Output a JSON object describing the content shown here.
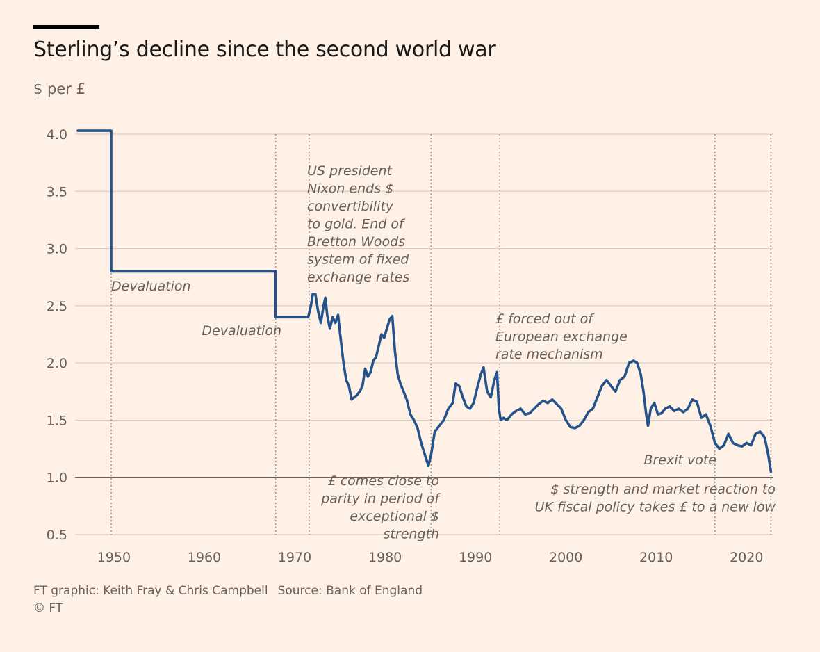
{
  "header": {
    "title": "Sterling’s decline since the second world war",
    "unit_label": "$ per £"
  },
  "footer": {
    "credit": "FT graphic: Keith Fray & Chris Campbell",
    "source": "Source: Bank of England",
    "copyright": "© FT"
  },
  "colors": {
    "line": "#24528a",
    "grid": "#d9cfc6",
    "baseline": "#66605c",
    "marker": "#9b9592",
    "background": "#fff1e5"
  },
  "chart_data": {
    "type": "line",
    "title": "Sterling’s decline since the second world war",
    "ylabel": "$ per £",
    "xlabel": "",
    "xlim": [
      1945.7,
      2022.9
    ],
    "ylim": [
      0.5,
      4.0
    ],
    "x_ticks": [
      1950,
      1960,
      1970,
      1980,
      1990,
      2000,
      2010,
      2020
    ],
    "y_ticks": [
      0.5,
      1.0,
      1.5,
      2.0,
      2.5,
      3.0,
      3.5,
      4.0
    ],
    "y_tick_labels": [
      "0.5",
      "1.0",
      "1.5",
      "2.0",
      "2.5",
      "3.0",
      "3.5",
      "4.0"
    ],
    "grid": true,
    "series": [
      {
        "x": [
          1946.0,
          1949.7,
          1949.7,
          1967.9,
          1967.9,
          1971.5,
          1971.8,
          1972.0,
          1972.3,
          1972.6,
          1972.9,
          1973.2,
          1973.4,
          1973.6,
          1973.9,
          1974.2,
          1974.5,
          1974.8,
          1975.1,
          1975.4,
          1975.7,
          1976.0,
          1976.3,
          1976.6,
          1976.9,
          1977.2,
          1977.5,
          1977.8,
          1978.1,
          1978.4,
          1978.7,
          1979.0,
          1979.3,
          1979.6,
          1979.9,
          1980.2,
          1980.5,
          1980.8,
          1981.1,
          1981.4,
          1981.7,
          1982.0,
          1982.4,
          1982.8,
          1983.2,
          1983.6,
          1984.0,
          1984.4,
          1984.8,
          1985.1,
          1985.5,
          1986.0,
          1986.5,
          1987.0,
          1987.5,
          1987.8,
          1988.2,
          1988.6,
          1989.0,
          1989.4,
          1989.8,
          1990.2,
          1990.6,
          1990.9,
          1991.3,
          1991.7,
          1992.1,
          1992.4,
          1992.6,
          1992.8,
          1993.1,
          1993.5,
          1994.0,
          1994.5,
          1995.0,
          1995.5,
          1996.0,
          1996.5,
          1997.0,
          1997.5,
          1998.0,
          1998.5,
          1999.0,
          1999.5,
          2000.0,
          2000.5,
          2001.0,
          2001.5,
          2002.0,
          2002.5,
          2003.0,
          2003.5,
          2004.0,
          2004.5,
          2005.0,
          2005.5,
          2006.0,
          2006.5,
          2007.0,
          2007.5,
          2007.9,
          2008.3,
          2008.6,
          2008.9,
          2009.1,
          2009.4,
          2009.8,
          2010.2,
          2010.6,
          2011.0,
          2011.5,
          2012.0,
          2012.5,
          2013.0,
          2013.5,
          2014.0,
          2014.5,
          2015.0,
          2015.5,
          2016.0,
          2016.5,
          2017.0,
          2017.5,
          2018.0,
          2018.5,
          2019.0,
          2019.5,
          2020.0,
          2020.5,
          2021.0,
          2021.5,
          2022.0,
          2022.4,
          2022.7
        ],
        "y": [
          4.03,
          4.03,
          2.8,
          2.8,
          2.4,
          2.4,
          2.5,
          2.6,
          2.6,
          2.45,
          2.35,
          2.5,
          2.57,
          2.42,
          2.3,
          2.4,
          2.35,
          2.42,
          2.2,
          2.0,
          1.85,
          1.8,
          1.68,
          1.7,
          1.72,
          1.75,
          1.8,
          1.95,
          1.88,
          1.92,
          2.02,
          2.05,
          2.15,
          2.25,
          2.22,
          2.3,
          2.38,
          2.41,
          2.1,
          1.9,
          1.82,
          1.76,
          1.68,
          1.55,
          1.5,
          1.43,
          1.3,
          1.2,
          1.1,
          1.2,
          1.4,
          1.45,
          1.5,
          1.6,
          1.65,
          1.82,
          1.8,
          1.7,
          1.62,
          1.6,
          1.65,
          1.78,
          1.9,
          1.96,
          1.75,
          1.7,
          1.85,
          1.92,
          1.6,
          1.5,
          1.52,
          1.5,
          1.55,
          1.58,
          1.6,
          1.55,
          1.56,
          1.6,
          1.64,
          1.67,
          1.65,
          1.68,
          1.64,
          1.6,
          1.5,
          1.44,
          1.43,
          1.45,
          1.5,
          1.57,
          1.6,
          1.7,
          1.8,
          1.85,
          1.8,
          1.75,
          1.85,
          1.88,
          2.0,
          2.02,
          2.0,
          1.9,
          1.75,
          1.55,
          1.45,
          1.6,
          1.65,
          1.55,
          1.56,
          1.6,
          1.62,
          1.58,
          1.6,
          1.57,
          1.6,
          1.68,
          1.66,
          1.52,
          1.55,
          1.45,
          1.3,
          1.25,
          1.28,
          1.38,
          1.3,
          1.28,
          1.27,
          1.3,
          1.28,
          1.38,
          1.4,
          1.35,
          1.2,
          1.05
        ]
      }
    ],
    "event_markers_x": [
      1949.7,
      1967.9,
      1971.6,
      1985.1,
      1992.7,
      2016.5,
      2022.7
    ],
    "annotations": [
      {
        "lines": [
          "Devaluation"
        ]
      },
      {
        "lines": [
          "Devaluation"
        ]
      },
      {
        "lines": [
          "US president",
          "Nixon ends $",
          "convertibility",
          "to gold. End of",
          "Bretton Woods",
          "system of fixed",
          "exchange rates"
        ]
      },
      {
        "lines": [
          "£ comes close to",
          "parity in period of",
          "exceptional $",
          "strength"
        ]
      },
      {
        "lines": [
          "£ forced out of",
          "European exchange",
          "rate mechanism"
        ]
      },
      {
        "lines": [
          "Brexit vote"
        ]
      },
      {
        "lines": [
          "$ strength and market reaction to",
          "UK fiscal policy takes £ to a new low"
        ]
      }
    ]
  }
}
